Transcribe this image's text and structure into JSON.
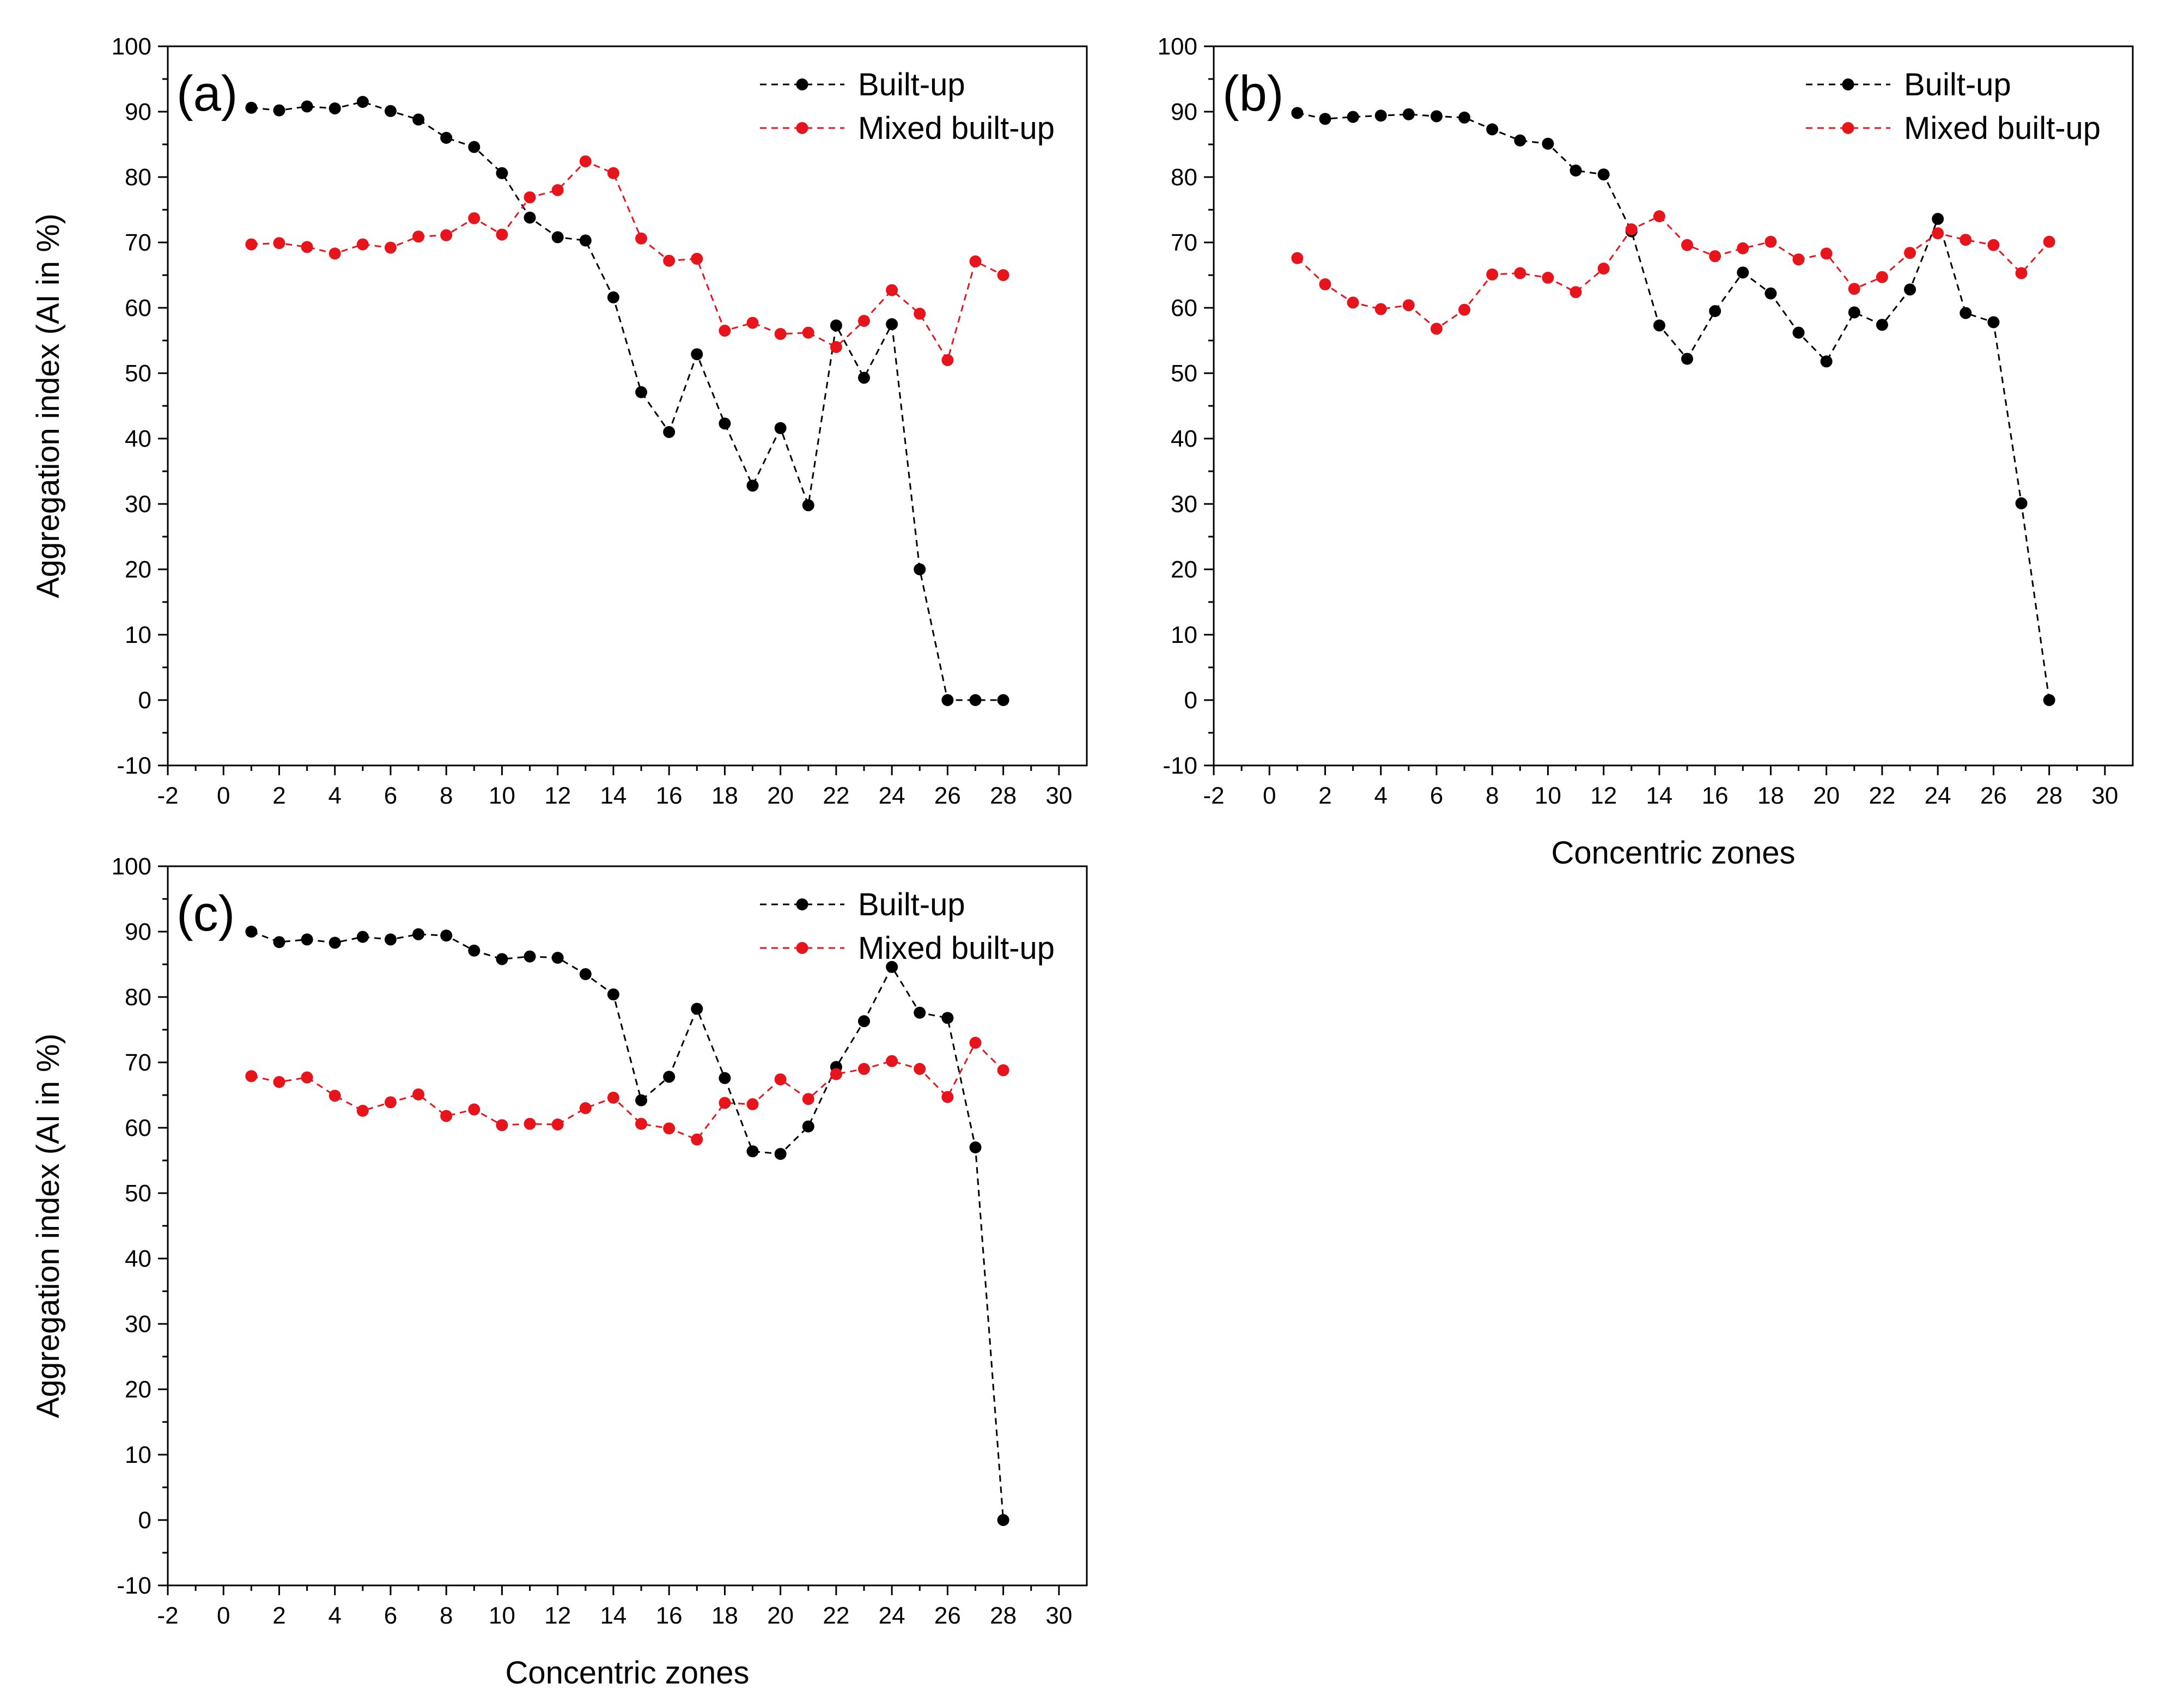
{
  "chart_data": [
    {
      "type": "line",
      "panel_label": "(a)",
      "xlabel": "",
      "ylabel": "Aggregation index (AI in %)",
      "xlim": [
        -2,
        31
      ],
      "ylim": [
        -10,
        100
      ],
      "xticks": [
        -2,
        0,
        2,
        4,
        6,
        8,
        10,
        12,
        14,
        16,
        18,
        20,
        22,
        24,
        26,
        28,
        30
      ],
      "yticks": [
        -10,
        0,
        10,
        20,
        30,
        40,
        50,
        60,
        70,
        80,
        90,
        100
      ],
      "legend_position": "top-right",
      "x": [
        1,
        2,
        3,
        4,
        5,
        6,
        7,
        8,
        9,
        10,
        11,
        12,
        13,
        14,
        15,
        16,
        17,
        18,
        19,
        20,
        21,
        22,
        23,
        24,
        25,
        26,
        27,
        28
      ],
      "series": [
        {
          "name": "Built-up",
          "color": "#000000",
          "line_style": "dashed",
          "values": [
            90.6,
            90.2,
            90.8,
            90.5,
            91.5,
            90.1,
            88.8,
            86.0,
            84.6,
            80.6,
            73.8,
            70.8,
            70.3,
            61.6,
            47.1,
            41.0,
            52.9,
            42.3,
            32.8,
            41.6,
            29.8,
            57.3,
            49.3,
            57.5,
            20.0,
            0,
            0,
            0
          ]
        },
        {
          "name": "Mixed built-up",
          "color": "#e8141c",
          "line_style": "dashed",
          "values": [
            69.7,
            69.9,
            69.3,
            68.3,
            69.7,
            69.2,
            70.9,
            71.1,
            73.7,
            71.2,
            76.9,
            78.0,
            82.4,
            80.6,
            70.6,
            67.2,
            67.5,
            56.5,
            57.7,
            56.0,
            56.2,
            54.0,
            58.0,
            62.7,
            59.1,
            52.0,
            67.1,
            65.0
          ]
        }
      ]
    },
    {
      "type": "line",
      "panel_label": "(b)",
      "xlabel": "Concentric zones",
      "ylabel": "",
      "xlim": [
        -2,
        31
      ],
      "ylim": [
        -10,
        100
      ],
      "xticks": [
        -2,
        0,
        2,
        4,
        6,
        8,
        10,
        12,
        14,
        16,
        18,
        20,
        22,
        24,
        26,
        28,
        30
      ],
      "yticks": [
        -10,
        0,
        10,
        20,
        30,
        40,
        50,
        60,
        70,
        80,
        90,
        100
      ],
      "legend_position": "top-right",
      "x": [
        1,
        2,
        3,
        4,
        5,
        6,
        7,
        8,
        9,
        10,
        11,
        12,
        13,
        14,
        15,
        16,
        17,
        18,
        19,
        20,
        21,
        22,
        23,
        24,
        25,
        26,
        27,
        28
      ],
      "series": [
        {
          "name": "Built-up",
          "color": "#000000",
          "line_style": "dashed",
          "values": [
            89.8,
            88.9,
            89.2,
            89.4,
            89.6,
            89.3,
            89.1,
            87.3,
            85.6,
            85.1,
            81.0,
            80.4,
            71.7,
            57.3,
            52.2,
            59.5,
            65.4,
            62.2,
            56.2,
            51.8,
            59.3,
            57.4,
            62.8,
            73.6,
            59.2,
            57.8,
            30.1,
            0
          ]
        },
        {
          "name": "Mixed built-up",
          "color": "#e8141c",
          "line_style": "dashed",
          "values": [
            67.6,
            63.6,
            60.8,
            59.8,
            60.4,
            56.8,
            59.7,
            65.1,
            65.3,
            64.6,
            62.4,
            66.0,
            72.0,
            74.0,
            69.6,
            67.9,
            69.1,
            70.1,
            67.4,
            68.3,
            62.9,
            64.7,
            68.4,
            71.4,
            70.4,
            69.6,
            65.3,
            70.1
          ]
        }
      ]
    },
    {
      "type": "line",
      "panel_label": "(c)",
      "xlabel": "Concentric zones",
      "ylabel": "Aggregation index (AI in %)",
      "xlim": [
        -2,
        31
      ],
      "ylim": [
        -10,
        100
      ],
      "xticks": [
        -2,
        0,
        2,
        4,
        6,
        8,
        10,
        12,
        14,
        16,
        18,
        20,
        22,
        24,
        26,
        28,
        30
      ],
      "yticks": [
        -10,
        0,
        10,
        20,
        30,
        40,
        50,
        60,
        70,
        80,
        90,
        100
      ],
      "legend_position": "top-right",
      "x": [
        1,
        2,
        3,
        4,
        5,
        6,
        7,
        8,
        9,
        10,
        11,
        12,
        13,
        14,
        15,
        16,
        17,
        18,
        19,
        20,
        21,
        22,
        23,
        24,
        25,
        26,
        27,
        28
      ],
      "series": [
        {
          "name": "Built-up",
          "color": "#000000",
          "line_style": "dashed",
          "values": [
            90.0,
            88.4,
            88.8,
            88.3,
            89.2,
            88.8,
            89.6,
            89.4,
            87.1,
            85.8,
            86.2,
            86.0,
            83.5,
            80.4,
            64.2,
            67.8,
            78.2,
            67.6,
            56.4,
            56.0,
            60.2,
            69.3,
            76.3,
            84.6,
            77.6,
            76.8,
            57.0,
            0
          ]
        },
        {
          "name": "Mixed built-up",
          "color": "#e8141c",
          "line_style": "dashed",
          "values": [
            67.9,
            67.0,
            67.7,
            64.9,
            62.6,
            63.9,
            65.1,
            61.8,
            62.8,
            60.4,
            60.6,
            60.5,
            63.0,
            64.6,
            60.6,
            59.9,
            58.2,
            63.8,
            63.6,
            67.4,
            64.4,
            68.2,
            69.0,
            70.2,
            69.0,
            64.7,
            73.0,
            68.8
          ]
        }
      ]
    }
  ]
}
